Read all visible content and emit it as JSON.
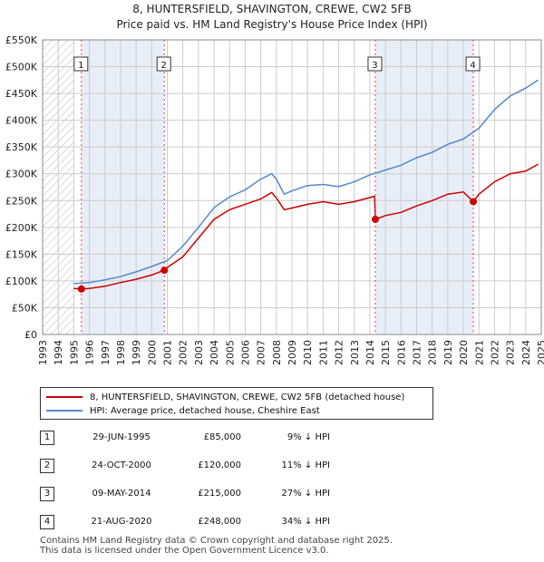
{
  "title_line1": "8, HUNTERSFIELD, SHAVINGTON, CREWE, CW2 5FB",
  "title_line2": "Price paid vs. HM Land Registry's House Price Index (HPI)",
  "chart_data": {
    "type": "line",
    "xlim": [
      1993,
      2025
    ],
    "ylim": [
      0,
      550000
    ],
    "x_ticks": [
      1993,
      1994,
      1995,
      1996,
      1997,
      1998,
      1999,
      2000,
      2001,
      2002,
      2003,
      2004,
      2005,
      2006,
      2007,
      2008,
      2009,
      2010,
      2011,
      2012,
      2013,
      2014,
      2015,
      2016,
      2017,
      2018,
      2019,
      2020,
      2021,
      2022,
      2023,
      2024,
      2025
    ],
    "y_ticks": [
      0,
      50000,
      100000,
      150000,
      200000,
      250000,
      300000,
      350000,
      400000,
      450000,
      500000,
      550000
    ],
    "y_tick_labels": [
      "£0",
      "£50K",
      "£100K",
      "£150K",
      "£200K",
      "£250K",
      "£300K",
      "£350K",
      "£400K",
      "£450K",
      "£500K",
      "£550K"
    ],
    "hatched_before": 1995.0,
    "series": [
      {
        "name": "8, HUNTERSFIELD, SHAVINGTON, CREWE, CW2 5FB (detached house)",
        "color": "#cc0000",
        "points": [
          [
            1995.0,
            86000
          ],
          [
            1995.5,
            85000
          ],
          [
            1996,
            86000
          ],
          [
            1997,
            90000
          ],
          [
            1998,
            97000
          ],
          [
            1999,
            103000
          ],
          [
            2000,
            111000
          ],
          [
            2000.8,
            120000
          ],
          [
            2001,
            125000
          ],
          [
            2002,
            145000
          ],
          [
            2003,
            180000
          ],
          [
            2004,
            215000
          ],
          [
            2005,
            233000
          ],
          [
            2006,
            243000
          ],
          [
            2007,
            253000
          ],
          [
            2007.7,
            265000
          ],
          [
            2008,
            255000
          ],
          [
            2008.5,
            233000
          ],
          [
            2009,
            236000
          ],
          [
            2010,
            243000
          ],
          [
            2011,
            248000
          ],
          [
            2012,
            243000
          ],
          [
            2013,
            248000
          ],
          [
            2014.3,
            258000
          ],
          [
            2014.36,
            215000
          ],
          [
            2015,
            222000
          ],
          [
            2016,
            228000
          ],
          [
            2017,
            240000
          ],
          [
            2018,
            250000
          ],
          [
            2019,
            262000
          ],
          [
            2020,
            266000
          ],
          [
            2020.64,
            248000
          ],
          [
            2021,
            262000
          ],
          [
            2022,
            285000
          ],
          [
            2023,
            300000
          ],
          [
            2024,
            305000
          ],
          [
            2024.8,
            318000
          ]
        ]
      },
      {
        "name": "HPI: Average price, detached house, Cheshire East",
        "color": "#5588cc",
        "points": [
          [
            1995.0,
            95000
          ],
          [
            1996,
            97000
          ],
          [
            1997,
            102000
          ],
          [
            1998,
            108000
          ],
          [
            1999,
            117000
          ],
          [
            2000,
            127000
          ],
          [
            2001,
            138000
          ],
          [
            2002,
            165000
          ],
          [
            2003,
            200000
          ],
          [
            2004,
            237000
          ],
          [
            2005,
            257000
          ],
          [
            2006,
            270000
          ],
          [
            2007,
            290000
          ],
          [
            2007.7,
            300000
          ],
          [
            2008,
            290000
          ],
          [
            2008.5,
            262000
          ],
          [
            2009,
            268000
          ],
          [
            2010,
            278000
          ],
          [
            2011,
            280000
          ],
          [
            2012,
            276000
          ],
          [
            2013,
            285000
          ],
          [
            2014,
            298000
          ],
          [
            2015,
            307000
          ],
          [
            2016,
            316000
          ],
          [
            2017,
            330000
          ],
          [
            2018,
            340000
          ],
          [
            2019,
            355000
          ],
          [
            2020,
            365000
          ],
          [
            2021,
            385000
          ],
          [
            2022,
            420000
          ],
          [
            2023,
            445000
          ],
          [
            2024,
            460000
          ],
          [
            2024.8,
            475000
          ]
        ]
      }
    ],
    "markers": [
      {
        "label": "1",
        "x": 1995.49,
        "y": 85000
      },
      {
        "label": "2",
        "x": 2000.81,
        "y": 120000
      },
      {
        "label": "3",
        "x": 2014.35,
        "y": 215000
      },
      {
        "label": "4",
        "x": 2020.64,
        "y": 248000
      }
    ]
  },
  "legend": [
    {
      "label": "8, HUNTERSFIELD, SHAVINGTON, CREWE, CW2 5FB (detached house)",
      "color": "#cc0000"
    },
    {
      "label": "HPI: Average price, detached house, Cheshire East",
      "color": "#5588cc"
    }
  ],
  "sales": [
    {
      "num": "1",
      "date": "29-JUN-1995",
      "price": "£85,000",
      "hpi": "9% ↓ HPI"
    },
    {
      "num": "2",
      "date": "24-OCT-2000",
      "price": "£120,000",
      "hpi": "11% ↓ HPI"
    },
    {
      "num": "3",
      "date": "09-MAY-2014",
      "price": "£215,000",
      "hpi": "27% ↓ HPI"
    },
    {
      "num": "4",
      "date": "21-AUG-2020",
      "price": "£248,000",
      "hpi": "34% ↓ HPI"
    }
  ],
  "footer_line1": "Contains HM Land Registry data © Crown copyright and database right 2025.",
  "footer_line2": "This data is licensed under the Open Government Licence v3.0."
}
